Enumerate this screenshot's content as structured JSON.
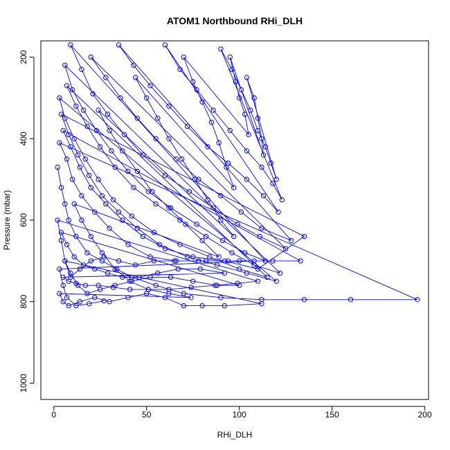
{
  "chart_data": {
    "type": "scatter",
    "title": "ATOM1 Northbound RHi_DLH",
    "xlabel": "RHi_DLH",
    "ylabel": "Pressure (mbar)",
    "xlim": [
      -7,
      202
    ],
    "ylim": [
      1040,
      160
    ],
    "y_inverted": true,
    "grid": false,
    "legend": "none",
    "xticks": [
      0,
      50,
      100,
      150,
      200
    ],
    "yticks": [
      200,
      400,
      600,
      800,
      1000
    ],
    "series": [
      {
        "color": "#0000ff",
        "marker": "open-circle",
        "connected": true,
        "points": [
          [
            2,
            470
          ],
          [
            4,
            520
          ],
          [
            6,
            560
          ],
          [
            8,
            600
          ],
          [
            12,
            640
          ],
          [
            18,
            680
          ],
          [
            26,
            700
          ],
          [
            34,
            720
          ],
          [
            42,
            740
          ],
          [
            55,
            760
          ],
          [
            70,
            780
          ],
          [
            90,
            790
          ],
          [
            112,
            795
          ],
          [
            135,
            795
          ],
          [
            160,
            795
          ],
          [
            196,
            795
          ],
          [
            3,
            410
          ],
          [
            7,
            450
          ],
          [
            10,
            500
          ],
          [
            15,
            540
          ],
          [
            22,
            580
          ],
          [
            30,
            620
          ],
          [
            40,
            660
          ],
          [
            52,
            690
          ],
          [
            66,
            700
          ],
          [
            82,
            700
          ],
          [
            100,
            700
          ],
          [
            118,
            700
          ],
          [
            133,
            700
          ],
          [
            5,
            380
          ],
          [
            9,
            420
          ],
          [
            14,
            470
          ],
          [
            20,
            520
          ],
          [
            28,
            560
          ],
          [
            37,
            600
          ],
          [
            48,
            640
          ],
          [
            60,
            670
          ],
          [
            75,
            690
          ],
          [
            92,
            700
          ],
          [
            110,
            720
          ],
          [
            135,
            640
          ],
          [
            4,
            340
          ],
          [
            8,
            390
          ],
          [
            13,
            440
          ],
          [
            19,
            490
          ],
          [
            26,
            540
          ],
          [
            35,
            580
          ],
          [
            45,
            620
          ],
          [
            57,
            660
          ],
          [
            72,
            690
          ],
          [
            88,
            710
          ],
          [
            104,
            730
          ],
          [
            120,
            750
          ],
          [
            3,
            300
          ],
          [
            6,
            350
          ],
          [
            11,
            400
          ],
          [
            17,
            450
          ],
          [
            24,
            500
          ],
          [
            32,
            550
          ],
          [
            42,
            590
          ],
          [
            54,
            630
          ],
          [
            68,
            660
          ],
          [
            84,
            690
          ],
          [
            100,
            720
          ],
          [
            115,
            740
          ],
          [
            7,
            270
          ],
          [
            12,
            320
          ],
          [
            18,
            370
          ],
          [
            25,
            420
          ],
          [
            33,
            470
          ],
          [
            43,
            520
          ],
          [
            55,
            560
          ],
          [
            68,
            600
          ],
          [
            82,
            640
          ],
          [
            96,
            680
          ],
          [
            108,
            710
          ],
          [
            122,
            730
          ],
          [
            6,
            220
          ],
          [
            10,
            280
          ],
          [
            16,
            330
          ],
          [
            23,
            380
          ],
          [
            31,
            430
          ],
          [
            40,
            480
          ],
          [
            51,
            530
          ],
          [
            63,
            570
          ],
          [
            77,
            610
          ],
          [
            91,
            650
          ],
          [
            103,
            680
          ],
          [
            114,
            700
          ],
          [
            9,
            170
          ],
          [
            15,
            230
          ],
          [
            21,
            290
          ],
          [
            29,
            340
          ],
          [
            38,
            390
          ],
          [
            48,
            440
          ],
          [
            60,
            490
          ],
          [
            73,
            530
          ],
          [
            86,
            570
          ],
          [
            99,
            610
          ],
          [
            111,
            640
          ],
          [
            125,
            670
          ],
          [
            20,
            200
          ],
          [
            28,
            250
          ],
          [
            36,
            300
          ],
          [
            45,
            350
          ],
          [
            55,
            400
          ],
          [
            66,
            450
          ],
          [
            78,
            500
          ],
          [
            90,
            540
          ],
          [
            101,
            580
          ],
          [
            112,
            620
          ],
          [
            128,
            650
          ],
          [
            35,
            170
          ],
          [
            43,
            220
          ],
          [
            52,
            270
          ],
          [
            62,
            320
          ],
          [
            72,
            370
          ],
          [
            83,
            420
          ],
          [
            94,
            460
          ],
          [
            104,
            500
          ],
          [
            113,
            540
          ],
          [
            121,
            580
          ],
          [
            60,
            170
          ],
          [
            68,
            230
          ],
          [
            77,
            280
          ],
          [
            86,
            330
          ],
          [
            95,
            380
          ],
          [
            104,
            430
          ],
          [
            112,
            470
          ],
          [
            118,
            510
          ],
          [
            123,
            550
          ],
          [
            90,
            180
          ],
          [
            96,
            230
          ],
          [
            101,
            280
          ],
          [
            106,
            330
          ],
          [
            110,
            380
          ],
          [
            114,
            420
          ],
          [
            117,
            460
          ],
          [
            120,
            500
          ],
          [
            104,
            250
          ],
          [
            108,
            300
          ],
          [
            110,
            350
          ],
          [
            112,
            400
          ],
          [
            113,
            440
          ],
          [
            95,
            200
          ],
          [
            98,
            260
          ],
          [
            100,
            300
          ],
          [
            103,
            340
          ],
          [
            105,
            390
          ],
          [
            70,
            200
          ],
          [
            75,
            260
          ],
          [
            80,
            310
          ],
          [
            85,
            360
          ],
          [
            89,
            410
          ],
          [
            93,
            470
          ],
          [
            97,
            520
          ],
          [
            44,
            250
          ],
          [
            50,
            300
          ],
          [
            56,
            350
          ],
          [
            62,
            400
          ],
          [
            69,
            450
          ],
          [
            76,
            500
          ],
          [
            83,
            550
          ],
          [
            90,
            600
          ],
          [
            97,
            640
          ],
          [
            24,
            330
          ],
          [
            30,
            380
          ],
          [
            37,
            430
          ],
          [
            45,
            480
          ],
          [
            53,
            530
          ],
          [
            62,
            570
          ],
          [
            71,
            610
          ],
          [
            80,
            650
          ],
          [
            89,
            690
          ],
          [
            11,
            560
          ],
          [
            15,
            600
          ],
          [
            20,
            640
          ],
          [
            26,
            680
          ],
          [
            33,
            720
          ],
          [
            41,
            750
          ],
          [
            51,
            770
          ],
          [
            62,
            780
          ],
          [
            74,
            790
          ],
          [
            3,
            780
          ],
          [
            5,
            800
          ],
          [
            8,
            810
          ],
          [
            14,
            800
          ],
          [
            22,
            790
          ],
          [
            30,
            800
          ],
          [
            40,
            790
          ],
          [
            50,
            780
          ],
          [
            60,
            790
          ],
          [
            70,
            810
          ],
          [
            80,
            810
          ],
          [
            92,
            810
          ],
          [
            112,
            805
          ],
          [
            6,
            700
          ],
          [
            9,
            730
          ],
          [
            13,
            760
          ],
          [
            18,
            780
          ],
          [
            25,
            770
          ],
          [
            33,
            760
          ],
          [
            42,
            750
          ],
          [
            52,
            740
          ],
          [
            63,
            740
          ],
          [
            75,
            750
          ],
          [
            88,
            760
          ],
          [
            100,
            760
          ],
          [
            4,
            630
          ],
          [
            7,
            660
          ],
          [
            11,
            690
          ],
          [
            16,
            710
          ],
          [
            22,
            720
          ],
          [
            29,
            730
          ],
          [
            37,
            740
          ],
          [
            46,
            740
          ],
          [
            56,
            730
          ],
          [
            67,
            720
          ],
          [
            79,
            720
          ],
          [
            92,
            730
          ],
          [
            5,
            740
          ],
          [
            8,
            750
          ],
          [
            12,
            755
          ],
          [
            17,
            760
          ],
          [
            24,
            760
          ],
          [
            32,
            765
          ],
          [
            41,
            770
          ],
          [
            51,
            770
          ],
          [
            62,
            770
          ],
          [
            74,
            765
          ],
          [
            87,
            760
          ],
          [
            99,
            755
          ],
          [
            110,
            750
          ],
          [
            2,
            600
          ],
          [
            4,
            650
          ],
          [
            6,
            700
          ],
          [
            9,
            740
          ],
          [
            14,
            720
          ],
          [
            20,
            700
          ],
          [
            27,
            690
          ],
          [
            35,
            700
          ],
          [
            44,
            710
          ],
          [
            54,
            700
          ],
          [
            65,
            700
          ],
          [
            78,
            700
          ],
          [
            94,
            700
          ],
          [
            108,
            700
          ],
          [
            3,
            720
          ],
          [
            5,
            760
          ],
          [
            7,
            790
          ],
          [
            12,
            810
          ],
          [
            19,
            805
          ],
          [
            27,
            798
          ]
        ]
      }
    ]
  }
}
